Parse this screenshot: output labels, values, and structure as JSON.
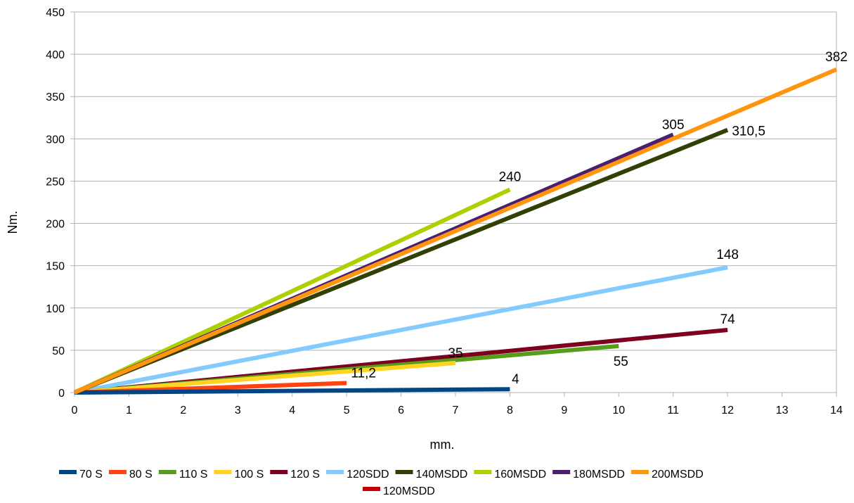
{
  "chart_data": {
    "type": "line",
    "title": "",
    "xlabel": "mm.",
    "ylabel": "Nm.",
    "xlim": [
      0,
      14
    ],
    "ylim": [
      0,
      450
    ],
    "x_ticks": [
      "0",
      "1",
      "2",
      "3",
      "4",
      "5",
      "6",
      "7",
      "8",
      "9",
      "10",
      "11",
      "12",
      "13",
      "14"
    ],
    "y_ticks": [
      "0",
      "50",
      "100",
      "150",
      "200",
      "250",
      "300",
      "350",
      "400",
      "450"
    ],
    "grid": "horizontal",
    "legend_position": "bottom",
    "series": [
      {
        "name": "70 S",
        "color": "#004586",
        "x": [
          0,
          8
        ],
        "y": [
          0,
          4
        ],
        "end_label": "4"
      },
      {
        "name": "80 S",
        "color": "#ff420e",
        "x": [
          0,
          5
        ],
        "y": [
          0,
          11.2
        ],
        "end_label": "11,2"
      },
      {
        "name": "110 S",
        "color": "#579d1c",
        "x": [
          0,
          10
        ],
        "y": [
          0,
          55
        ],
        "end_label": "55"
      },
      {
        "name": "100 S",
        "color": "#ffd320",
        "x": [
          0,
          7
        ],
        "y": [
          0,
          35
        ],
        "end_label": "35"
      },
      {
        "name": "120 S",
        "color": "#7e0021",
        "x": [
          0,
          12
        ],
        "y": [
          0,
          74
        ],
        "end_label": "74"
      },
      {
        "name": "120SDD",
        "color": "#83caff",
        "x": [
          0,
          12
        ],
        "y": [
          0,
          148
        ],
        "end_label": "148"
      },
      {
        "name": "140MSDD",
        "color": "#314004",
        "x": [
          0,
          12
        ],
        "y": [
          0,
          310.5
        ],
        "end_label": "310,5"
      },
      {
        "name": "160MSDD",
        "color": "#aecf00",
        "x": [
          0,
          8
        ],
        "y": [
          0,
          240
        ],
        "end_label": "240"
      },
      {
        "name": "180MSDD",
        "color": "#4b1f6f",
        "x": [
          0,
          11
        ],
        "y": [
          0,
          305
        ],
        "end_label": "305"
      },
      {
        "name": "200MSDD",
        "color": "#ff950e",
        "x": [
          0,
          14
        ],
        "y": [
          0,
          382
        ],
        "end_label": "382"
      },
      {
        "name": "120MSDD",
        "color": "#c5000b",
        "x": [],
        "y": [],
        "end_label": ""
      }
    ]
  }
}
